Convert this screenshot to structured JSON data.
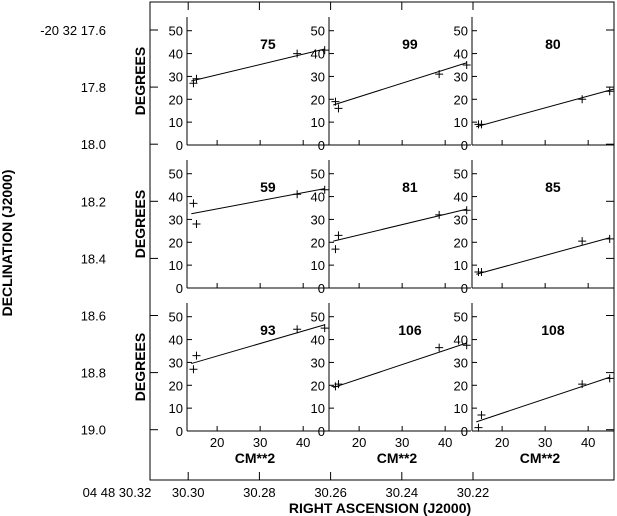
{
  "chart_data": {
    "type": "scatter",
    "outer": {
      "dec_ticks": [
        "-20 32 17.6",
        "17.8",
        "18.0",
        "18.2",
        "18.4",
        "18.6",
        "18.8",
        "19.0"
      ],
      "ra_ticks": [
        "04 48 30.32",
        "30.30",
        "30.28",
        "30.26",
        "30.24",
        "30.22"
      ],
      "xlabel": "RIGHT ASCENSION (J2000)",
      "ylabel": "DECLINATION (J2000)"
    },
    "panel_axes": {
      "xlabel": "CM**2",
      "ylabel": "DEGREES",
      "xticks": [
        20,
        30,
        40
      ],
      "yticks": [
        0,
        10,
        20,
        30,
        40,
        50
      ],
      "xlim": [
        13,
        46
      ],
      "ylim": [
        0,
        56
      ]
    },
    "panels": [
      {
        "label": "75",
        "x": [
          14.5,
          15.2,
          38.6,
          45.0
        ],
        "y": [
          27,
          29,
          40,
          41.5
        ],
        "fit": [
          [
            14.0,
            28.0
          ],
          [
            45.0,
            42.0
          ]
        ]
      },
      {
        "label": "99",
        "x": [
          14.5,
          15.2,
          38.6,
          45.0
        ],
        "y": [
          19,
          16,
          31,
          35
        ],
        "fit": [
          [
            14.0,
            17.5
          ],
          [
            45.0,
            36.0
          ]
        ]
      },
      {
        "label": "80",
        "x": [
          14.5,
          15.2,
          38.6,
          45.0
        ],
        "y": [
          9,
          9,
          20,
          23.5
        ],
        "fit": [
          [
            14.0,
            8.0
          ],
          [
            46.0,
            24.5
          ]
        ]
      },
      {
        "label": "59",
        "x": [
          14.5,
          15.2,
          38.6,
          45.0
        ],
        "y": [
          37,
          28,
          41,
          43
        ],
        "fit": [
          [
            14.0,
            32.5
          ],
          [
            45.0,
            43.5
          ]
        ]
      },
      {
        "label": "81",
        "x": [
          14.5,
          15.2,
          38.6,
          45.0
        ],
        "y": [
          17,
          23,
          32,
          34
        ],
        "fit": [
          [
            14.0,
            20.5
          ],
          [
            45.0,
            34.5
          ]
        ]
      },
      {
        "label": "85",
        "x": [
          14.5,
          15.2,
          38.6,
          45.0
        ],
        "y": [
          7,
          7,
          20.5,
          21.5
        ],
        "fit": [
          [
            14.0,
            6.0
          ],
          [
            45.0,
            22.0
          ]
        ]
      },
      {
        "label": "93",
        "x": [
          14.5,
          15.2,
          38.6,
          45.0
        ],
        "y": [
          27,
          33,
          44.5,
          45
        ],
        "fit": [
          [
            14.0,
            29.5
          ],
          [
            45.0,
            46.5
          ]
        ]
      },
      {
        "label": "106",
        "x": [
          14.5,
          15.2,
          38.6,
          45.0
        ],
        "y": [
          19.5,
          20.5,
          36.5,
          37.5
        ],
        "fit": [
          [
            14.0,
            19.0
          ],
          [
            45.0,
            38.5
          ]
        ]
      },
      {
        "label": "108",
        "x": [
          14.5,
          15.2,
          38.6,
          45.0
        ],
        "y": [
          1.5,
          7,
          20.5,
          23
        ],
        "fit": [
          [
            14.0,
            4.0
          ],
          [
            45.0,
            23.5
          ]
        ]
      }
    ]
  }
}
